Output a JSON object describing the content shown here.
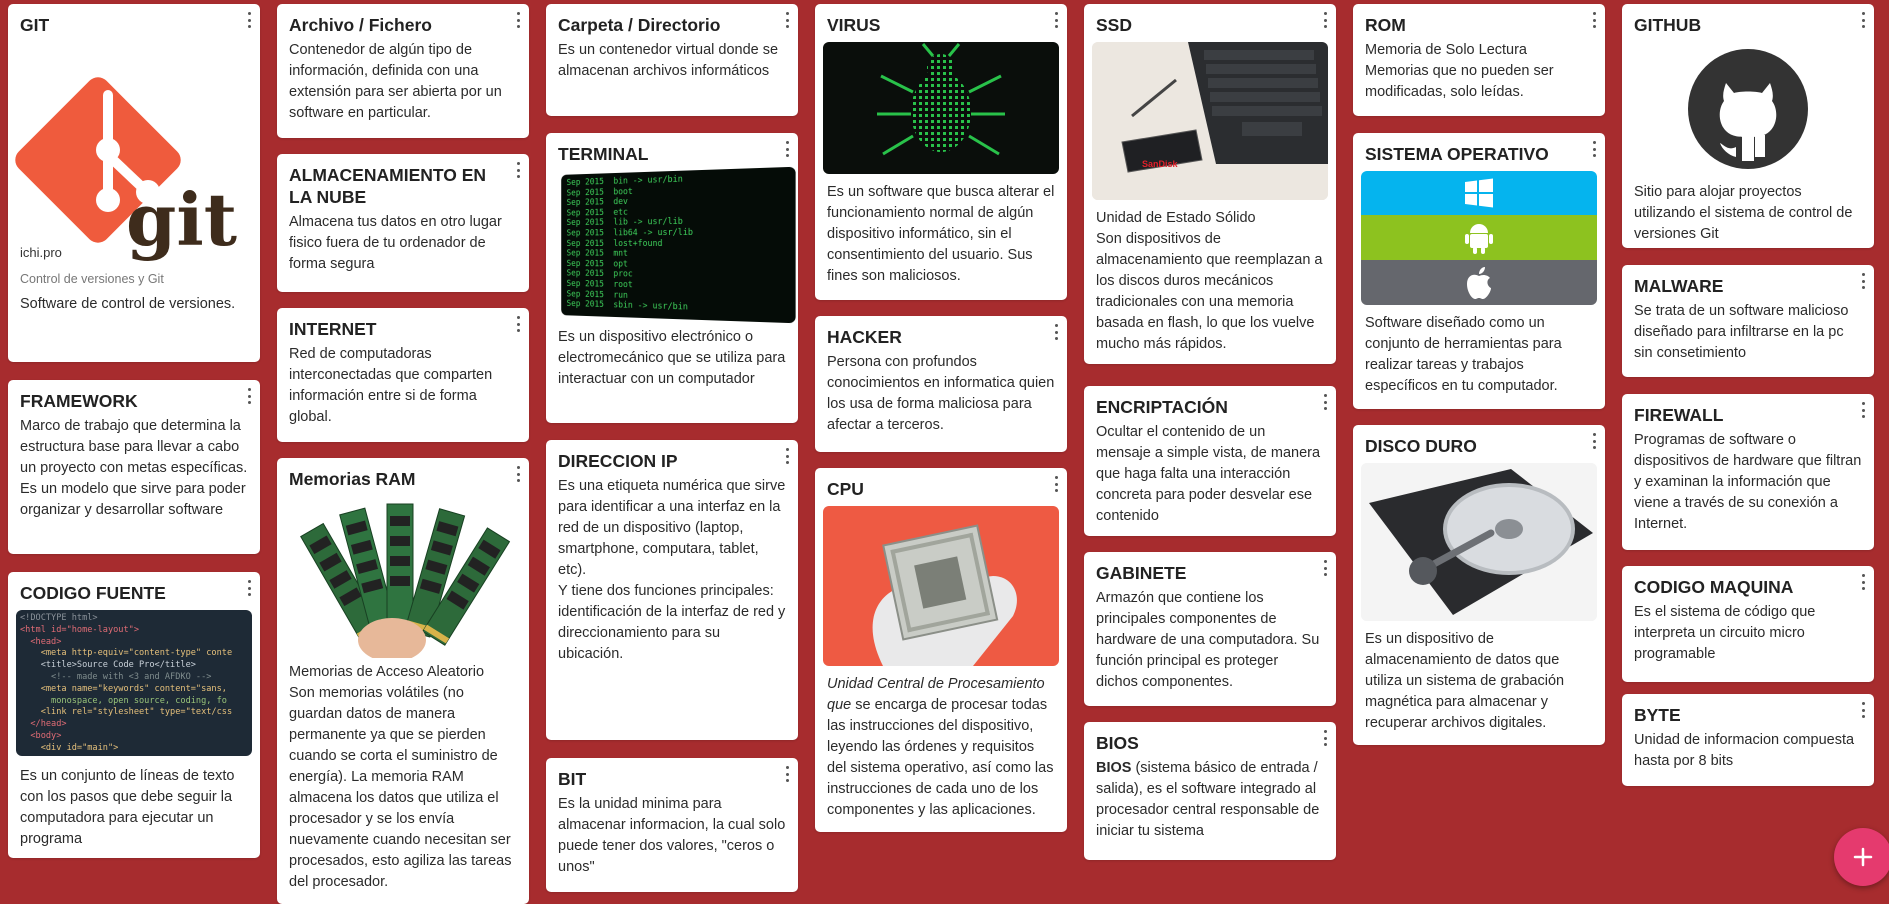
{
  "board": {
    "background_color": "#a72c2e",
    "add_button_label": "+",
    "add_button_color": "#e53a6e"
  },
  "cards": {
    "git": {
      "title": "GIT",
      "link_domain": "ichi.pro",
      "link_caption": "Control de versiones y Git",
      "body": "Software de control de versiones.",
      "logo_text": "git"
    },
    "framework": {
      "title": "FRAMEWORK",
      "body": "Marco de trabajo que determina la estructura base para llevar a cabo un proyecto con metas específicas. Es un modelo que sirve para poder organizar y desarrollar software"
    },
    "codigo_fuente": {
      "title": "CODIGO FUENTE",
      "code_lines": [
        "<!DOCTYPE html>",
        "<html id=\"home-layout\">",
        "  <head>",
        "    <meta http-equiv=\"content-type\" conte",
        "    <title>Source Code Pro</title>",
        "      <!-- made with <3 and AFDKO -->",
        "    <meta name=\"keywords\" content=\"sans,",
        "      monospace, open source, coding, fo",
        "    <link rel=\"stylesheet\" type=\"text/css",
        "  </head>",
        "  <body>",
        "    <div id=\"main\">"
      ],
      "body": "Es un conjunto de líneas de texto con los pasos que debe seguir la computadora para ejecutar un programa"
    },
    "archivo": {
      "title": "Archivo / Fichero",
      "body": "Contenedor de algún tipo de información, definida con una extensión para ser abierta por un software en particular."
    },
    "almacenamiento_nube": {
      "title": "ALMACENAMIENTO EN LA NUBE",
      "body": "Almacena tus datos en otro lugar fisico fuera de tu ordenador de forma segura"
    },
    "internet": {
      "title": "INTERNET",
      "body": "Red de computadoras interconectadas que comparten información entre si de forma global."
    },
    "memorias_ram": {
      "title": "Memorias RAM",
      "body": "Memorias de Acceso Aleatorio\nSon memorias volátiles (no guardan datos de manera permanente ya que se pierden cuando se corta el suministro de energía). La memoria RAM almacena los datos que utiliza el procesador y se los envía nuevamente cuando necesitan ser procesados, esto agiliza las tareas del procesador."
    },
    "carpeta": {
      "title": "Carpeta / Directorio",
      "body": "Es un contenedor virtual donde se almacenan archivos informáticos"
    },
    "terminal": {
      "title": "TERMINAL",
      "screen_lines": [
        "Sep 2015  bin -> usr/bin",
        "Sep 2015  boot",
        "Sep 2015  dev",
        "Sep 2015  etc",
        "Sep 2015  lib -> usr/lib",
        "Sep 2015  lib64 -> usr/lib",
        "Sep 2015  lost+found",
        "Sep 2015  mnt",
        "Sep 2015  opt",
        "Sep 2015  proc",
        "Sep 2015  root",
        "Sep 2015  run",
        "Sep 2015  sbin -> usr/bin"
      ],
      "body": "Es un dispositivo electrónico o electromecánico que se utiliza para interactuar con un computador"
    },
    "direccion_ip": {
      "title": "DIRECCION IP",
      "body": "Es una etiqueta numérica que sirve para identificar a una interfaz en la red de un dispositivo (laptop, smartphone, computara, tablet, etc).\nY tiene dos funciones principales: identificación de la interfaz de red y direccionamiento para su ubicación."
    },
    "bit": {
      "title": "BIT",
      "body": "Es la unidad minima para almacenar informacion, la cual solo puede tener dos valores, \"ceros o unos\""
    },
    "virus": {
      "title": "VIRUS",
      "body": "Es un software que busca alterar el funcionamiento normal de algún dispositivo informático, sin el consentimiento del usuario. Sus fines son maliciosos."
    },
    "hacker": {
      "title": "HACKER",
      "body": "Persona con profundos conocimientos en informatica quien los usa de forma maliciosa para afectar a terceros."
    },
    "cpu": {
      "title": "CPU",
      "body_lead": "Unidad Central de Procesamiento que",
      "body_rest": " se encarga de procesar todas las instrucciones del dispositivo, leyendo las órdenes y requisitos del sistema operativo, así como las instrucciones de cada uno de los componentes y las aplicaciones."
    },
    "ssd": {
      "title": "SSD",
      "device_label": "SanDisk",
      "body": "Unidad de Estado Sólido\nSon dispositivos de almacenamiento que reemplazan a los discos duros mecánicos tradicionales con una memoria basada en flash, lo que los vuelve mucho más rápidos."
    },
    "encriptacion": {
      "title": "ENCRIPTACIÓN",
      "body": "Ocultar el contenido de un mensaje a simple vista, de manera que haga falta una interacción concreta para poder desvelar ese contenido"
    },
    "gabinete": {
      "title": "GABINETE",
      "body": "Armazón que contiene los principales componentes de hardware de una computadora. Su función principal es proteger dichos componentes."
    },
    "bios": {
      "title": "BIOS",
      "body_bold": "BIOS",
      "body_rest": " (sistema básico de entrada / salida), es el software integrado al procesador central responsable de iniciar tu sistema"
    },
    "rom": {
      "title": "ROM",
      "body": "Memoria de Solo Lectura\nMemorias que no pueden ser modificadas, solo leídas."
    },
    "sistema_operativo": {
      "title": "SISTEMA OPERATIVO",
      "band_colors": [
        "#05b4ee",
        "#8dc21f",
        "#65676d"
      ],
      "body": "Software diseñado como un conjunto de herramientas para realizar tareas y trabajos específicos en tu computador."
    },
    "disco_duro": {
      "title": "DISCO DURO",
      "body": "Es un dispositivo de almacenamiento de datos que utiliza un sistema de grabación magnética para almacenar y recuperar archivos digitales."
    },
    "github": {
      "title": "GITHUB",
      "body": "Sitio para alojar proyectos utilizando el sistema de control de versiones Git"
    },
    "malware": {
      "title": "MALWARE",
      "body": "Se trata de un software malicioso diseñado para infiltrarse en la pc sin consetimiento"
    },
    "firewall": {
      "title": "FIREWALL",
      "body": "Programas de software o dispositivos de hardware que filtran y examinan la información que viene a través de su conexión a Internet."
    },
    "codigo_maquina": {
      "title": "CODIGO MAQUINA",
      "body": "Es el sistema de código que interpreta un circuito micro programable"
    },
    "byte": {
      "title": "BYTE",
      "body": "Unidad de informacion compuesta hasta por 8 bits"
    }
  }
}
